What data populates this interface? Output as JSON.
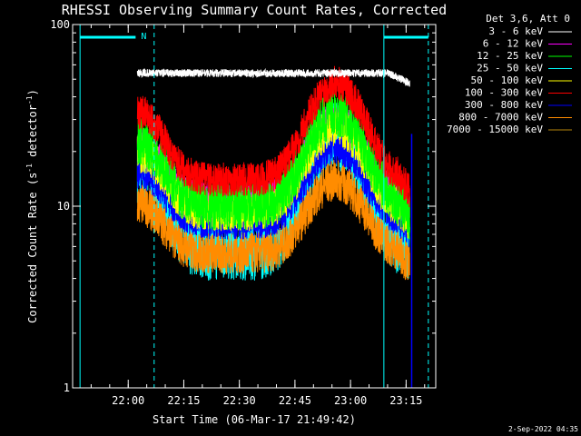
{
  "chart_data": {
    "type": "line",
    "title": "RHESSI Observing Summary Count Rates, Corrected",
    "xlabel": "Start Time (06-Mar-17 21:49:42)",
    "ylabel_main": "Corrected Count Rate (s",
    "ylabel_sup1": "-1",
    "ylabel_mid": " detector",
    "ylabel_sup2": "-1",
    "ylabel_end": ")",
    "y_scale": "log",
    "ylim": [
      1,
      100
    ],
    "xlim_minutes_after_2150": [
      -5,
      93
    ],
    "yticks": [
      {
        "value": 1,
        "label": "1"
      },
      {
        "value": 10,
        "label": "10"
      },
      {
        "value": 100,
        "label": "100"
      }
    ],
    "xticks": [
      {
        "minute": 10,
        "label": "22:00"
      },
      {
        "minute": 25,
        "label": "22:15"
      },
      {
        "minute": 40,
        "label": "22:30"
      },
      {
        "minute": 55,
        "label": "22:45"
      },
      {
        "minute": 70,
        "label": "23:00"
      },
      {
        "minute": 85,
        "label": "23:15"
      }
    ],
    "legend_title": "Det 3,6, Att 0",
    "legend_position": "top-right",
    "series": [
      {
        "name": "3 - 6 keV",
        "color": "#ffffff",
        "base": 54,
        "hump": 0,
        "amp": 0.05
      },
      {
        "name": "6 - 12 keV",
        "color": "#ff00ff",
        "base": 11,
        "hump": 1.1,
        "amp": 0.1
      },
      {
        "name": "12 - 25 keV",
        "color": "#00ff00",
        "base": 10,
        "hump": 1.4,
        "amp": 0.14
      },
      {
        "name": "25 - 50 keV",
        "color": "#00ffff",
        "base": 6,
        "hump": 1.9,
        "amp": 0.2
      },
      {
        "name": "50 - 100 keV",
        "color": "#ffff00",
        "base": 9.5,
        "hump": 1.2,
        "amp": 0.12
      },
      {
        "name": "100 - 300 keV",
        "color": "#ff0000",
        "base": 14,
        "hump": 1.5,
        "amp": 0.1
      },
      {
        "name": "300 - 800 keV",
        "color": "#0000ff",
        "base": 8,
        "hump": 1.0,
        "amp": 0.09
      },
      {
        "name": "800 - 7000 keV",
        "color": "#ff8c00",
        "base": 5.5,
        "hump": 0.95,
        "amp": 0.12
      },
      {
        "name": "7000 - 15000 keV",
        "color": "#b8860b",
        "base": 0,
        "hump": 0,
        "amp": 0
      }
    ],
    "data_window_minutes": [
      12.5,
      86
    ],
    "saa_flag_label": "N",
    "saa_bars_minutes": [
      [
        -3,
        12
      ],
      [
        79,
        91
      ]
    ],
    "vertical_lines_minutes": {
      "solid_cyan": [
        -3,
        79
      ],
      "dashed_cyan": [
        17,
        91
      ],
      "solid_blue": [
        86.5
      ]
    },
    "colors": {
      "background": "#000000",
      "axes": "#ffffff",
      "saa": "#00ffff"
    }
  },
  "timestamp": "2-Sep-2022 04:35"
}
